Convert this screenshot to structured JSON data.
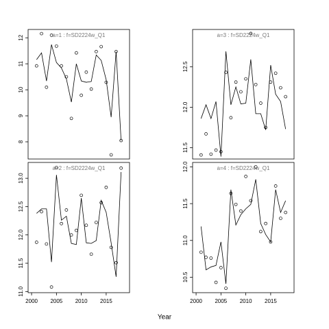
{
  "xlabel": "Year",
  "chart_data": [
    {
      "type": "line",
      "title": "a=1  :  f=SD2224w_Q1",
      "x": [
        2001,
        2002,
        2003,
        2004,
        2005,
        2006,
        2007,
        2008,
        2009,
        2010,
        2011,
        2012,
        2013,
        2014,
        2015,
        2016,
        2017,
        2018
      ],
      "xlim": [
        1999.3,
        2019.7
      ],
      "ylim": [
        7.34,
        12.32
      ],
      "yticks": [
        8,
        9,
        10,
        11,
        12
      ],
      "series": [
        {
          "style": "points",
          "color": "#000000",
          "values": [
            10.92,
            12.16,
            10.1,
            12.1,
            11.68,
            10.92,
            10.5,
            8.9,
            11.42,
            9.79,
            10.68,
            10.03,
            11.47,
            11.66,
            10.29,
            7.5,
            11.47,
            8.05
          ]
        },
        {
          "style": "line",
          "color": "#000000",
          "values": [
            11.16,
            11.42,
            10.34,
            11.74,
            11.05,
            10.84,
            10.42,
            9.53,
            11.0,
            10.34,
            10.29,
            10.32,
            11.34,
            11.13,
            10.39,
            8.95,
            11.47,
            8.05
          ]
        }
      ]
    },
    {
      "type": "line",
      "title": "a=2  :  f=SD2224w_Q1",
      "x": [
        2001,
        2002,
        2003,
        2004,
        2005,
        2006,
        2007,
        2008,
        2009,
        2010,
        2011,
        2012,
        2013,
        2014,
        2015,
        2016,
        2017,
        2018
      ],
      "xlim": [
        1999.3,
        2019.7
      ],
      "xticks": [
        2000,
        2005,
        2010,
        2015
      ],
      "ylim": [
        10.98,
        13.28
      ],
      "yticks": [
        {
          "value": 11,
          "label": "11.0"
        },
        {
          "value": 11.5,
          "label": "11.5"
        },
        {
          "value": 12,
          "label": "12.0"
        },
        {
          "value": 12.5,
          "label": "12.5"
        },
        {
          "value": 13,
          "label": "13.0"
        }
      ],
      "series": [
        {
          "style": "points",
          "color": "#000000",
          "values": [
            11.87,
            12.41,
            11.84,
            11.08,
            13.19,
            12.2,
            12.44,
            12.0,
            12.08,
            12.7,
            12.17,
            11.66,
            12.22,
            12.57,
            12.84,
            11.78,
            11.51,
            13.18
          ]
        },
        {
          "style": "line",
          "color": "#000000",
          "values": [
            12.38,
            12.46,
            12.46,
            11.52,
            13.06,
            12.26,
            12.33,
            11.85,
            11.83,
            12.65,
            11.86,
            11.85,
            11.9,
            12.61,
            12.4,
            11.86,
            11.26,
            13.11
          ]
        }
      ]
    },
    {
      "type": "line",
      "title": "a=3  :  f=SD2224w_Q1",
      "x": [
        2001,
        2002,
        2003,
        2004,
        2005,
        2006,
        2007,
        2008,
        2009,
        2010,
        2011,
        2012,
        2013,
        2014,
        2015,
        2016,
        2017,
        2018
      ],
      "xlim": [
        1999.3,
        2019.7
      ],
      "ylim": [
        11.36,
        12.96
      ],
      "yticks": [
        {
          "value": 11.5,
          "label": "11.5"
        },
        {
          "value": 12,
          "label": "12.0"
        },
        {
          "value": 12.5,
          "label": "12.5"
        }
      ],
      "series": [
        {
          "style": "points",
          "color": "#000000",
          "values": [
            11.41,
            11.67,
            11.42,
            11.47,
            11.45,
            12.43,
            11.87,
            12.31,
            12.19,
            12.35,
            12.91,
            12.28,
            12.05,
            11.75,
            12.31,
            12.42,
            12.24,
            12.13
          ]
        },
        {
          "style": "line",
          "color": "#000000",
          "values": [
            11.86,
            12.03,
            11.86,
            12.07,
            11.39,
            12.69,
            12.03,
            12.25,
            12.04,
            12.05,
            12.59,
            11.92,
            11.92,
            11.72,
            12.52,
            12.16,
            12.07,
            11.73
          ]
        }
      ]
    },
    {
      "type": "line",
      "title": "a=4  :  f=SD2224w_Q1",
      "x": [
        2001,
        2002,
        2003,
        2004,
        2005,
        2006,
        2007,
        2008,
        2009,
        2010,
        2011,
        2012,
        2013,
        2014,
        2015,
        2016,
        2017,
        2018
      ],
      "xlim": [
        1999.3,
        2019.7
      ],
      "xticks": [
        2000,
        2005,
        2010,
        2015
      ],
      "ylim": [
        10.29,
        12.06
      ],
      "yticks": [
        {
          "value": 10.5,
          "label": "10.5"
        },
        {
          "value": 11,
          "label": "11.0"
        },
        {
          "value": 11.5,
          "label": "11.5"
        },
        {
          "value": 12,
          "label": "12.0"
        }
      ],
      "series": [
        {
          "style": "points",
          "color": "#000000",
          "values": [
            10.84,
            10.77,
            10.76,
            10.43,
            10.63,
            10.35,
            11.64,
            11.49,
            11.4,
            11.87,
            11.54,
            12.0,
            11.12,
            11.23,
            10.98,
            11.74,
            11.3,
            11.38
          ]
        },
        {
          "style": "line",
          "color": "#000000",
          "values": [
            11.19,
            10.6,
            10.64,
            10.66,
            10.98,
            10.41,
            11.69,
            11.21,
            11.35,
            11.43,
            11.49,
            11.83,
            11.23,
            11.08,
            10.98,
            11.69,
            11.38,
            11.54
          ]
        }
      ]
    }
  ]
}
